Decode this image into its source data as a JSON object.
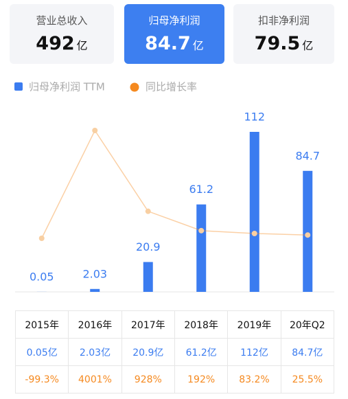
{
  "tabs": [
    {
      "label": "营业总收入",
      "value": 492,
      "unit": "亿",
      "active": false
    },
    {
      "label": "归母净利润",
      "value": 84.7,
      "unit": "亿",
      "active": true
    },
    {
      "label": "扣非净利润",
      "value": 79.5,
      "unit": "亿",
      "active": false
    }
  ],
  "chart_data": {
    "type": "bar",
    "categories": [
      "2015年",
      "2016年",
      "2017年",
      "2018年",
      "2019年",
      "20年Q2"
    ],
    "series": [
      {
        "name": "归母净利润 TTM",
        "color": "#3b7cf0",
        "type": "bar",
        "values": [
          0.05,
          2.03,
          20.9,
          61.2,
          112,
          84.7
        ],
        "value_labels": [
          "0.05亿",
          "2.03亿",
          "20.9亿",
          "61.2亿",
          "112亿",
          "84.7亿"
        ]
      },
      {
        "name": "同比增长率",
        "color": "#f5891f",
        "type": "line",
        "values": [
          -99.3,
          4001,
          928,
          192,
          83.2,
          25.5
        ],
        "value_labels": [
          "-99.3%",
          "4001%",
          "928%",
          "192%",
          "83.2%",
          "25.5%"
        ]
      }
    ]
  }
}
